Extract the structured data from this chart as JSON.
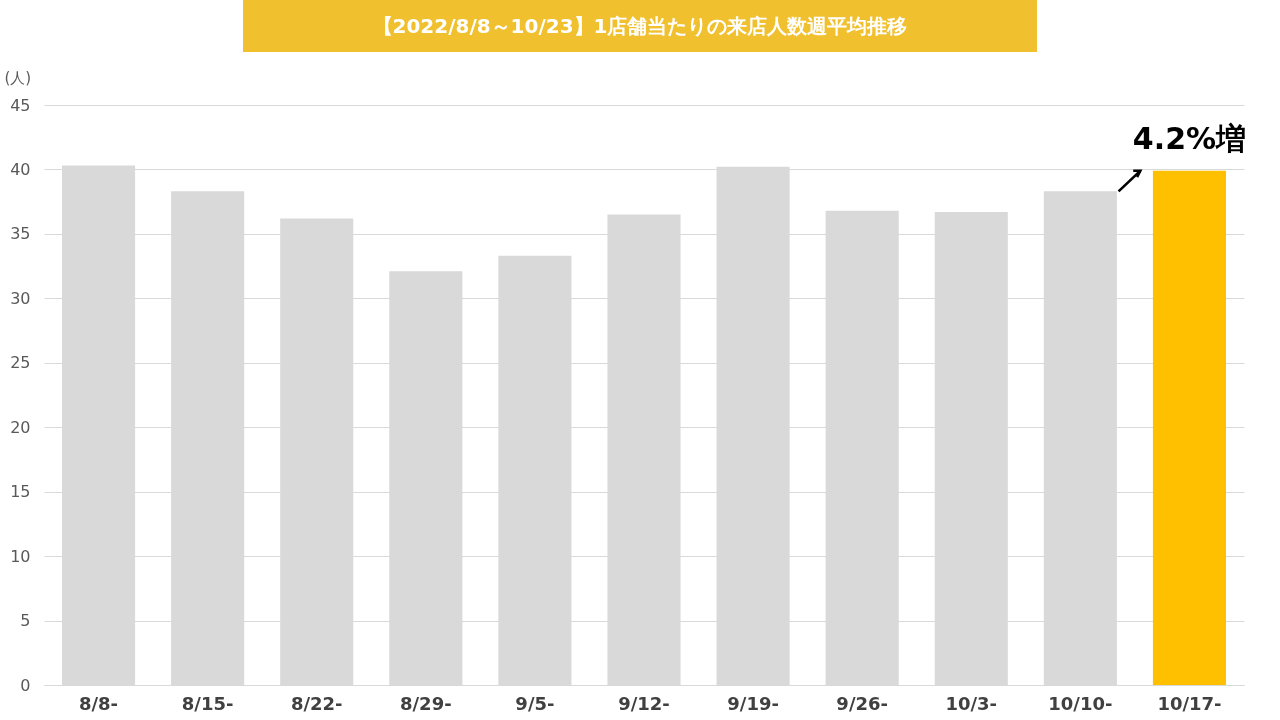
{
  "chart_data": {
    "type": "bar",
    "title": "【2022/8/8～10/23】1店舗当たりの来店人数週平均推移",
    "ylabel": "(人)",
    "categories": [
      "8/8-",
      "8/15-",
      "8/22-",
      "8/29-",
      "9/5-",
      "9/12-",
      "9/19-",
      "9/26-",
      "10/3-",
      "10/10-",
      "10/17-"
    ],
    "values": [
      40.3,
      38.3,
      36.2,
      32.1,
      33.3,
      36.5,
      40.2,
      36.8,
      36.7,
      38.3,
      39.9
    ],
    "colors": [
      "#d9d9d9",
      "#d9d9d9",
      "#d9d9d9",
      "#d9d9d9",
      "#d9d9d9",
      "#d9d9d9",
      "#d9d9d9",
      "#d9d9d9",
      "#d9d9d9",
      "#d9d9d9",
      "#ffc000"
    ],
    "ylim": [
      0,
      45
    ],
    "yticks": [
      0,
      5,
      10,
      15,
      20,
      25,
      30,
      35,
      40,
      45
    ],
    "grid": "y",
    "annotations": [
      {
        "text": "4.2%増",
        "x": "10/17-",
        "y": 39.9
      }
    ]
  }
}
